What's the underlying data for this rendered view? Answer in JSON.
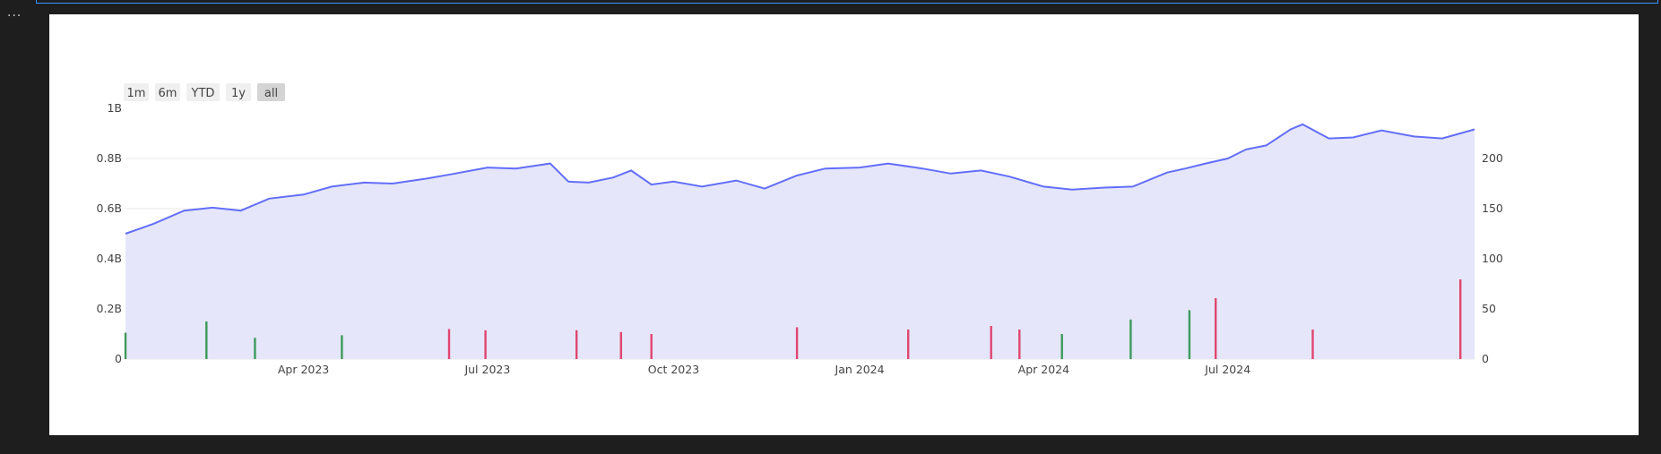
{
  "chart_data": {
    "type": "line",
    "title": "",
    "range_selector": {
      "buttons": [
        "1m",
        "6m",
        "YTD",
        "1y",
        "all"
      ],
      "active": "all"
    },
    "x_axis": {
      "ticks": [
        "Apr 2023",
        "Jul 2023",
        "Oct 2023",
        "Jan 2024",
        "Apr 2024",
        "Jul 2024"
      ],
      "tick_dates": [
        "2023-04-01",
        "2023-07-01",
        "2023-10-01",
        "2024-01-01",
        "2024-04-01",
        "2024-07-01"
      ],
      "range": [
        "2023-01-03",
        "2024-10-31"
      ]
    },
    "y_axis_left": {
      "label": "",
      "ticks": [
        "0",
        "0.2B",
        "0.4B",
        "0.6B",
        "0.8B",
        "1B"
      ],
      "tick_values": [
        0,
        200000000,
        400000000,
        600000000,
        800000000,
        1000000000
      ],
      "range": [
        0,
        1000000000
      ]
    },
    "y_axis_right": {
      "label": "",
      "ticks": [
        "0",
        "50",
        "100",
        "150",
        "200"
      ],
      "tick_values": [
        0,
        50,
        100,
        150,
        200
      ],
      "range": [
        0,
        250
      ]
    },
    "grid": true,
    "colors": {
      "price_line": "#636efa",
      "price_fill": "#e5e6fa",
      "volume_up": "#3d9a5a",
      "volume_down": "#e0466e"
    },
    "series": [
      {
        "name": "",
        "type": "area",
        "axis": "right",
        "x": [
          "2023-01-03",
          "2023-01-17",
          "2023-02-01",
          "2023-02-15",
          "2023-03-01",
          "2023-03-15",
          "2023-04-01",
          "2023-04-15",
          "2023-05-01",
          "2023-05-15",
          "2023-06-01",
          "2023-06-15",
          "2023-07-01",
          "2023-07-15",
          "2023-08-01",
          "2023-08-10",
          "2023-08-20",
          "2023-09-01",
          "2023-09-10",
          "2023-09-20",
          "2023-10-01",
          "2023-10-15",
          "2023-11-01",
          "2023-11-15",
          "2023-12-01",
          "2023-12-15",
          "2024-01-01",
          "2024-01-15",
          "2024-02-01",
          "2024-02-15",
          "2024-03-01",
          "2024-03-15",
          "2024-04-01",
          "2024-04-15",
          "2024-05-01",
          "2024-05-15",
          "2024-06-01",
          "2024-06-10",
          "2024-06-20",
          "2024-07-01",
          "2024-07-10",
          "2024-07-20",
          "2024-08-01",
          "2024-08-07",
          "2024-08-20",
          "2024-09-01",
          "2024-09-15",
          "2024-10-01",
          "2024-10-15",
          "2024-10-31"
        ],
        "values": [
          125,
          135,
          148,
          151,
          148,
          160,
          164,
          172,
          176,
          175,
          180,
          185,
          191,
          190,
          195,
          177,
          176,
          181,
          188,
          174,
          177,
          172,
          178,
          170,
          183,
          190,
          191,
          195,
          190,
          185,
          188,
          182,
          172,
          169,
          171,
          172,
          186,
          190,
          195,
          200,
          209,
          213,
          229,
          234,
          220,
          221,
          228,
          222,
          220,
          229
        ]
      },
      {
        "name": "",
        "type": "bar",
        "axis": "left",
        "x": [
          "2023-01-03",
          "2023-02-12",
          "2023-03-08",
          "2023-04-20",
          "2023-06-12",
          "2023-06-30",
          "2023-08-14",
          "2023-09-05",
          "2023-09-20",
          "2023-12-01",
          "2024-01-25",
          "2024-03-06",
          "2024-03-20",
          "2024-04-10",
          "2024-05-14",
          "2024-06-12",
          "2024-06-25",
          "2024-08-12",
          "2024-10-24"
        ],
        "values": [
          105000000,
          150000000,
          85000000,
          95000000,
          120000000,
          115000000,
          115000000,
          108000000,
          100000000,
          127000000,
          118000000,
          132000000,
          118000000,
          100000000,
          158000000,
          195000000,
          243000000,
          118000000,
          318000000
        ],
        "direction": [
          "up",
          "up",
          "up",
          "up",
          "down",
          "down",
          "down",
          "down",
          "down",
          "down",
          "down",
          "down",
          "down",
          "up",
          "up",
          "up",
          "down",
          "down",
          "down"
        ]
      }
    ]
  }
}
